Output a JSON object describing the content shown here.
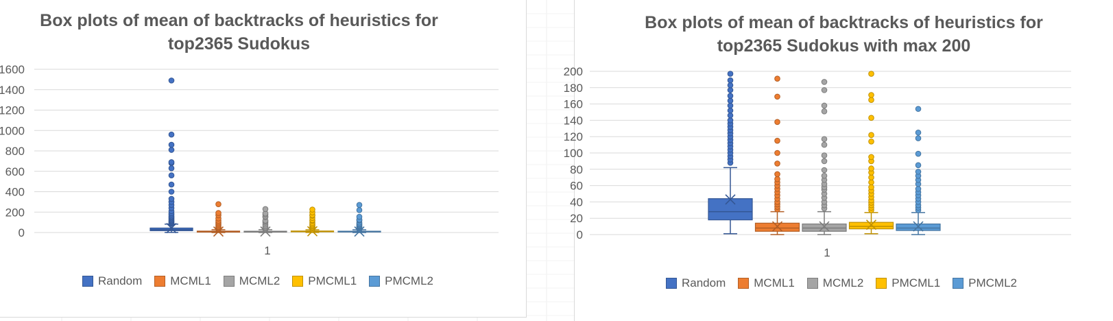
{
  "colors": {
    "Random": "#4472c4",
    "MCML1": "#ed7d31",
    "MCML2": "#a5a5a5",
    "PMCML1": "#ffc000",
    "PMCML2": "#5b9bd5"
  },
  "legend": [
    "Random",
    "MCML1",
    "MCML2",
    "PMCML1",
    "PMCML2"
  ],
  "chart_data": [
    {
      "type": "box",
      "title": "Box plots of mean of backtracks of heuristics for top2365 Sudokus",
      "categories": [
        "1"
      ],
      "ylim": [
        0,
        1600
      ],
      "yticks": [
        0,
        200,
        400,
        600,
        800,
        1000,
        1200,
        1400,
        1600
      ],
      "grid": true,
      "legend_position": "bottom",
      "series": [
        {
          "name": "Random",
          "min": 1,
          "q1": 18,
          "median": 28,
          "q3": 44,
          "max": 82,
          "mean": 43,
          "outliers": [
            88,
            96,
            104,
            112,
            120,
            130,
            140,
            150,
            160,
            175,
            190,
            210,
            240,
            270,
            300,
            330,
            400,
            470,
            560,
            630,
            680,
            690,
            810,
            860,
            960,
            1490
          ]
        },
        {
          "name": "MCML1",
          "min": 0,
          "q1": 4,
          "median": 8,
          "q3": 14,
          "max": 28,
          "mean": 10,
          "outliers": [
            31,
            36,
            44,
            52,
            60,
            74,
            87,
            100,
            115,
            138,
            169,
            191,
            278
          ]
        },
        {
          "name": "MCML2",
          "min": 0,
          "q1": 4,
          "median": 8,
          "q3": 13,
          "max": 28,
          "mean": 10,
          "outliers": [
            32,
            40,
            50,
            62,
            79,
            97,
            110,
            117,
            151,
            158,
            177,
            187,
            230
          ]
        },
        {
          "name": "PMCML1",
          "min": 1,
          "q1": 7,
          "median": 10,
          "q3": 15,
          "max": 27,
          "mean": 12,
          "outliers": [
            32,
            42,
            50,
            60,
            70,
            81,
            95,
            114,
            122,
            143,
            165,
            171,
            197,
            225
          ]
        },
        {
          "name": "PMCML2",
          "min": 0,
          "q1": 5,
          "median": 8,
          "q3": 13,
          "max": 27,
          "mean": 10,
          "outliers": [
            32,
            40,
            48,
            56,
            62,
            67,
            77,
            85,
            99,
            118,
            125,
            154,
            220,
            270
          ]
        }
      ]
    },
    {
      "type": "box",
      "title": "Box plots of mean of backtracks of heuristics for top2365 Sudokus with max 200",
      "categories": [
        "1"
      ],
      "ylim": [
        0,
        200
      ],
      "yticks": [
        0,
        20,
        40,
        60,
        80,
        100,
        120,
        140,
        160,
        180,
        200
      ],
      "grid": true,
      "legend_position": "bottom",
      "series": [
        {
          "name": "Random",
          "min": 1,
          "q1": 18,
          "median": 28,
          "q3": 44,
          "max": 82,
          "mean": 43,
          "outliers": [
            88,
            92,
            96,
            100,
            104,
            108,
            112,
            116,
            120,
            124,
            128,
            132,
            136,
            140,
            146,
            152,
            158,
            164,
            170,
            177,
            183,
            189,
            197
          ]
        },
        {
          "name": "MCML1",
          "min": 0,
          "q1": 4,
          "median": 8,
          "q3": 14,
          "max": 28,
          "mean": 10,
          "outliers": [
            31,
            34,
            37,
            40,
            44,
            48,
            52,
            56,
            60,
            64,
            68,
            74,
            87,
            100,
            115,
            138,
            169,
            191
          ]
        },
        {
          "name": "MCML2",
          "min": 0,
          "q1": 4,
          "median": 8,
          "q3": 13,
          "max": 28,
          "mean": 10,
          "outliers": [
            32,
            36,
            40,
            45,
            50,
            55,
            58,
            62,
            67,
            72,
            79,
            90,
            97,
            110,
            117,
            151,
            158,
            177,
            187
          ]
        },
        {
          "name": "PMCML1",
          "min": 1,
          "q1": 7,
          "median": 10,
          "q3": 15,
          "max": 27,
          "mean": 12,
          "outliers": [
            30,
            33,
            36,
            39,
            42,
            46,
            50,
            54,
            58,
            64,
            70,
            76,
            81,
            90,
            95,
            114,
            122,
            143,
            165,
            171,
            197
          ]
        },
        {
          "name": "PMCML2",
          "min": 0,
          "q1": 5,
          "median": 8,
          "q3": 13,
          "max": 27,
          "mean": 10,
          "outliers": [
            30,
            33,
            36,
            40,
            44,
            48,
            52,
            56,
            62,
            67,
            72,
            77,
            85,
            99,
            118,
            125,
            154
          ]
        }
      ]
    }
  ]
}
